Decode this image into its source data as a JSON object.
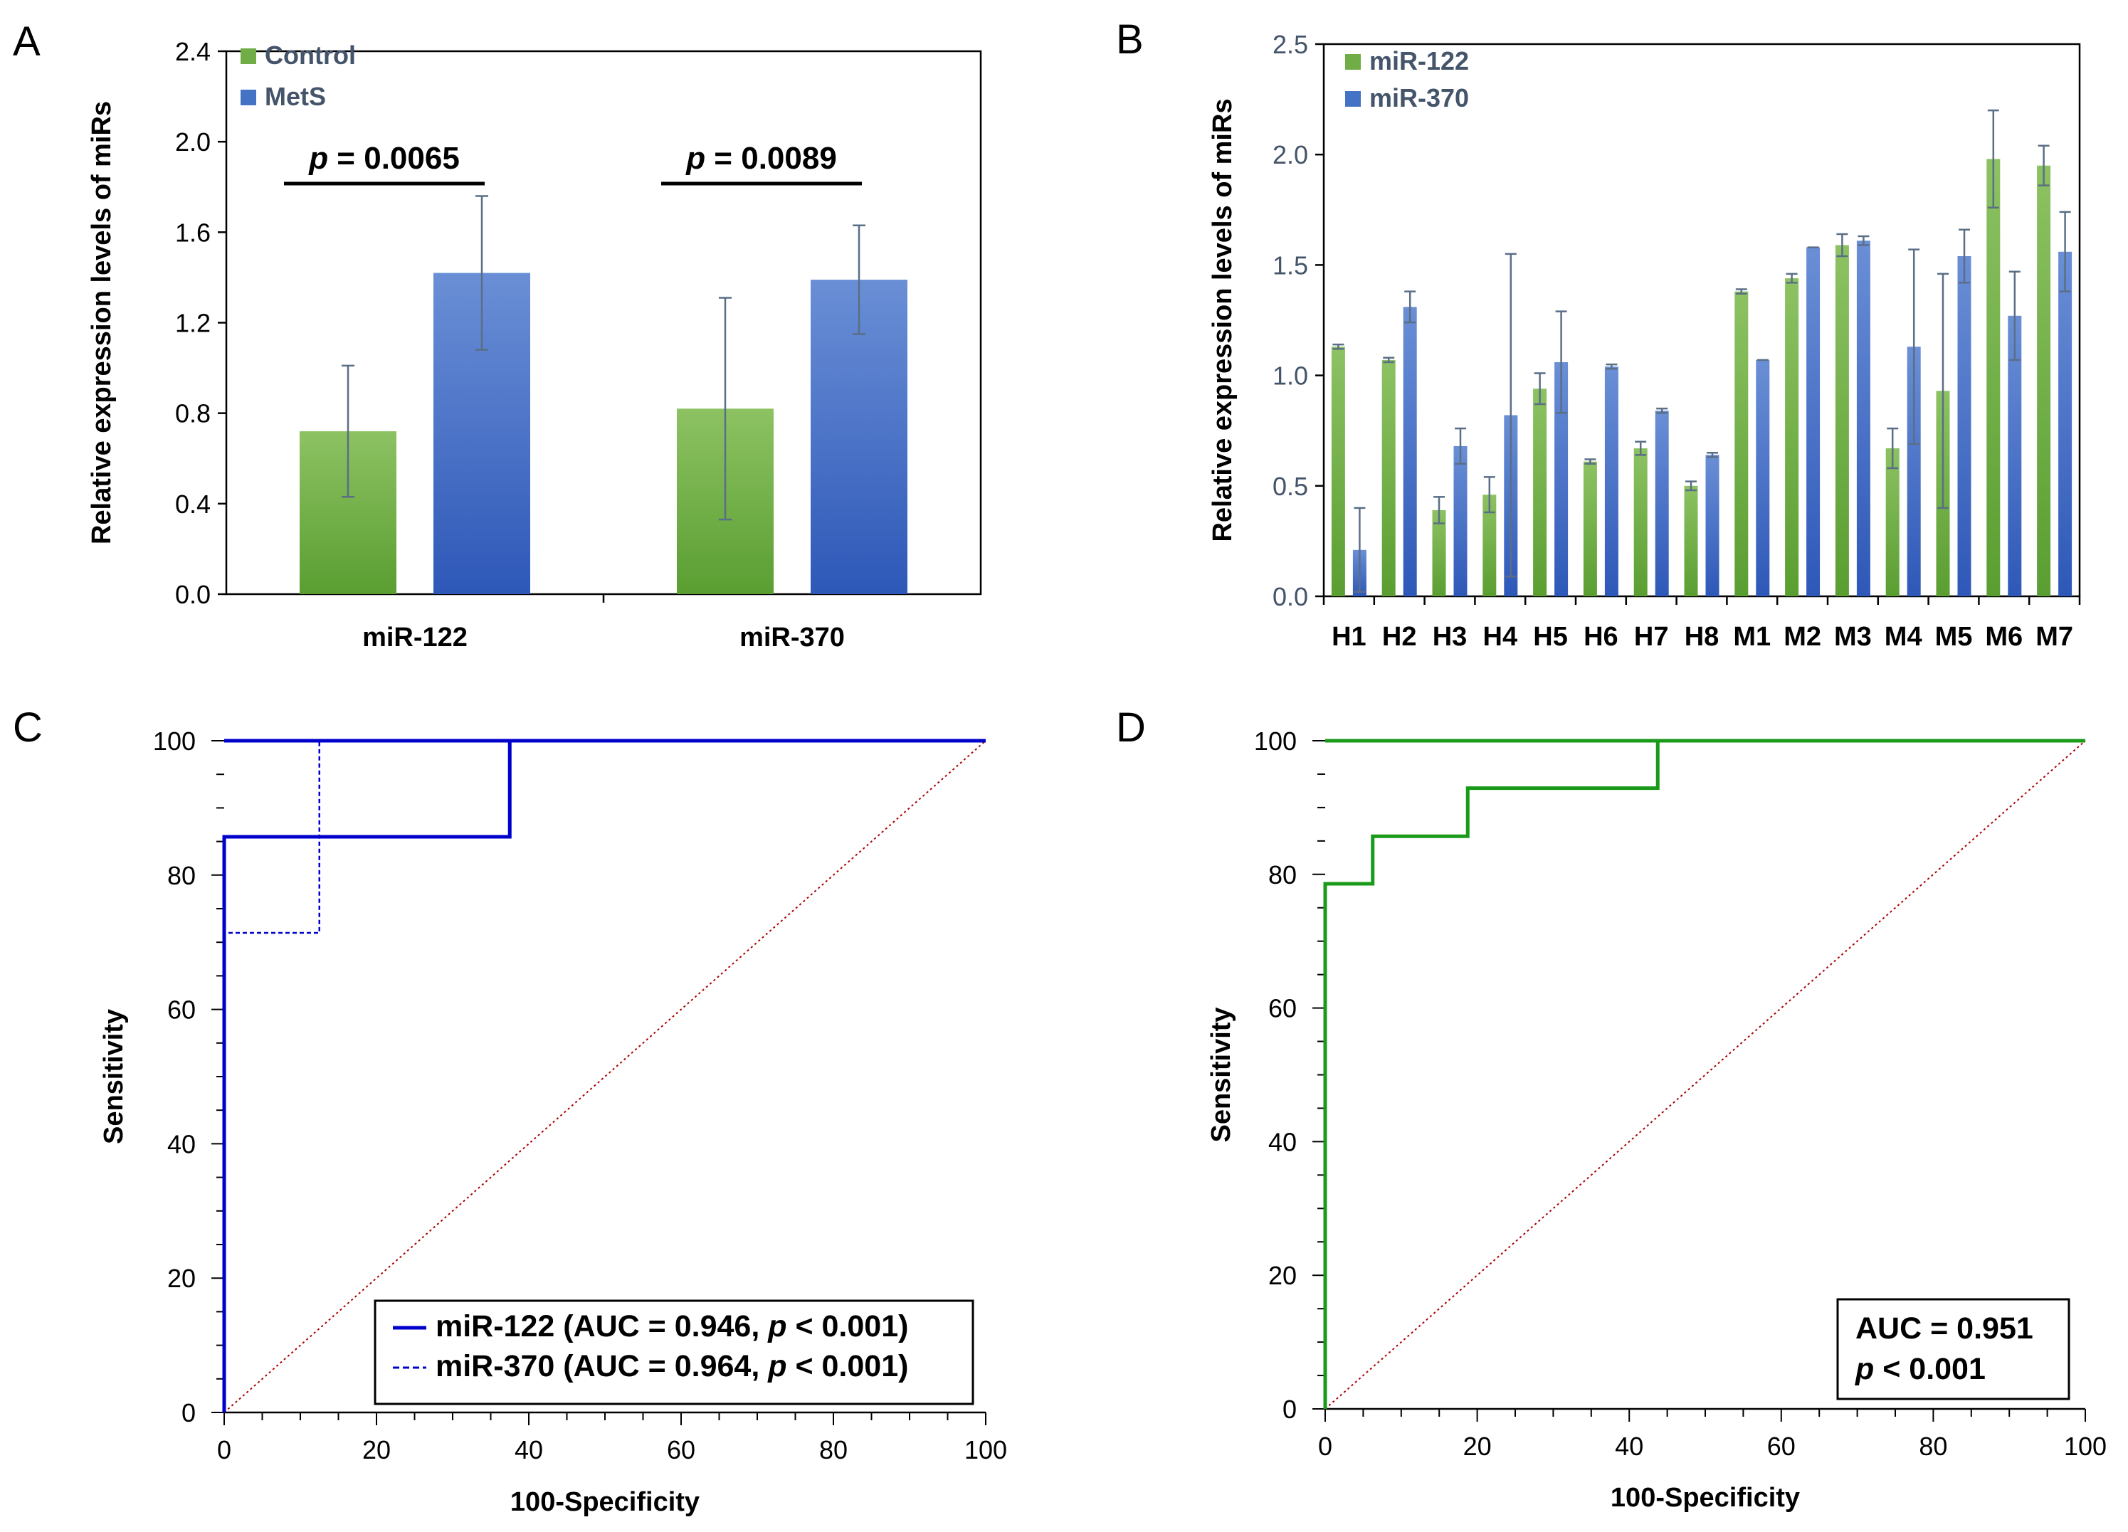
{
  "chart_data": [
    {
      "panel": "A",
      "type": "bar",
      "ylabel": "Relative expression levels of miRs",
      "xlabel": "",
      "ylim": [
        0,
        2.4
      ],
      "yticks": [
        "0.0",
        "0.4",
        "0.8",
        "1.2",
        "1.6",
        "2.0",
        "2.4"
      ],
      "categories": [
        "miR-122",
        "miR-370"
      ],
      "series": [
        {
          "name": "Control",
          "color": "#70ad47",
          "values": [
            0.72,
            0.82
          ],
          "errors": [
            0.29,
            0.49
          ]
        },
        {
          "name": "MetS",
          "color": "#4472c4",
          "values": [
            1.42,
            1.39
          ],
          "errors": [
            0.34,
            0.24
          ]
        }
      ],
      "annotations": [
        {
          "p_label": "p",
          "text": " = 0.0065",
          "category": "miR-122"
        },
        {
          "p_label": "p",
          "text": " = 0.0089",
          "category": "miR-370"
        }
      ],
      "legend": "top-left"
    },
    {
      "panel": "B",
      "type": "bar",
      "ylabel": "Relative expression levels of miRs",
      "xlabel": "",
      "ylim": [
        0,
        2.5
      ],
      "yticks": [
        "0.0",
        "0.5",
        "1.0",
        "1.5",
        "2.0",
        "2.5"
      ],
      "categories": [
        "H1",
        "H2",
        "H3",
        "H4",
        "H5",
        "H6",
        "H7",
        "H8",
        "M1",
        "M2",
        "M3",
        "M4",
        "M5",
        "M6",
        "M7"
      ],
      "series": [
        {
          "name": "miR-122",
          "color": "#70ad47",
          "values": [
            1.13,
            1.07,
            0.39,
            0.46,
            0.94,
            0.61,
            0.67,
            0.5,
            1.38,
            1.44,
            1.59,
            0.67,
            0.93,
            1.98,
            1.95
          ],
          "errors": [
            0.01,
            0.01,
            0.06,
            0.08,
            0.07,
            0.01,
            0.03,
            0.02,
            0.01,
            0.02,
            0.05,
            0.09,
            0.53,
            0.22,
            0.09
          ]
        },
        {
          "name": "miR-370",
          "color": "#4472c4",
          "values": [
            0.21,
            1.31,
            0.68,
            0.82,
            1.06,
            1.04,
            0.84,
            0.64,
            1.07,
            1.58,
            1.61,
            1.13,
            1.54,
            1.27,
            1.56
          ],
          "errors": [
            0.19,
            0.07,
            0.08,
            0.73,
            0.23,
            0.01,
            0.01,
            0.01,
            0.0,
            0.0,
            0.02,
            0.44,
            0.12,
            0.2,
            0.18
          ]
        }
      ],
      "legend": "top-left"
    },
    {
      "panel": "C",
      "type": "line",
      "subtype": "roc",
      "xlabel": "100-Specificity",
      "ylabel": "Sensitivity",
      "xlim": [
        0,
        100
      ],
      "ylim": [
        0,
        100
      ],
      "xticks": [
        "0",
        "20",
        "40",
        "60",
        "80",
        "100"
      ],
      "yticks": [
        "0",
        "20",
        "40",
        "60",
        "80",
        "100"
      ],
      "series": [
        {
          "name": "miR-122 (AUC = 0.946, ",
          "p_text": "p",
          "suffix": " < 0.001)",
          "style": "solid",
          "color": "#0000cc",
          "x": [
            0,
            0,
            37.5,
            37.5,
            100
          ],
          "y": [
            0,
            85.7,
            85.7,
            100,
            100
          ]
        },
        {
          "name": "miR-370 (AUC = 0.964, ",
          "p_text": "p",
          "suffix": " < 0.001)",
          "style": "dashed",
          "color": "#0000cc",
          "x": [
            0,
            0,
            12.5,
            12.5,
            100
          ],
          "y": [
            0,
            71.4,
            71.4,
            100,
            100
          ]
        },
        {
          "name": "reference",
          "style": "dotted",
          "color": "#aa0000",
          "x": [
            0,
            100
          ],
          "y": [
            0,
            100
          ]
        }
      ],
      "legend": "bottom-right"
    },
    {
      "panel": "D",
      "type": "line",
      "subtype": "roc",
      "xlabel": "100-Specificity",
      "ylabel": "Sensitivity",
      "xlim": [
        0,
        100
      ],
      "ylim": [
        0,
        100
      ],
      "xticks": [
        "0",
        "20",
        "40",
        "60",
        "80",
        "100"
      ],
      "yticks": [
        "0",
        "20",
        "40",
        "60",
        "80",
        "100"
      ],
      "series": [
        {
          "name": "combined",
          "style": "solid",
          "color": "#1a9a1a",
          "x": [
            0,
            0,
            6.25,
            6.25,
            18.75,
            18.75,
            43.75,
            43.75,
            100
          ],
          "y": [
            0,
            78.6,
            78.6,
            85.7,
            85.7,
            92.9,
            92.9,
            100,
            100
          ]
        },
        {
          "name": "reference",
          "style": "dotted",
          "color": "#aa0000",
          "x": [
            0,
            100
          ],
          "y": [
            0,
            100
          ]
        }
      ],
      "auc_text": "AUC = 0.951",
      "p_label": "p",
      "p_text": " < 0.001",
      "legend": "bottom-right"
    }
  ],
  "panel_labels": [
    "A",
    "B",
    "C",
    "D"
  ]
}
